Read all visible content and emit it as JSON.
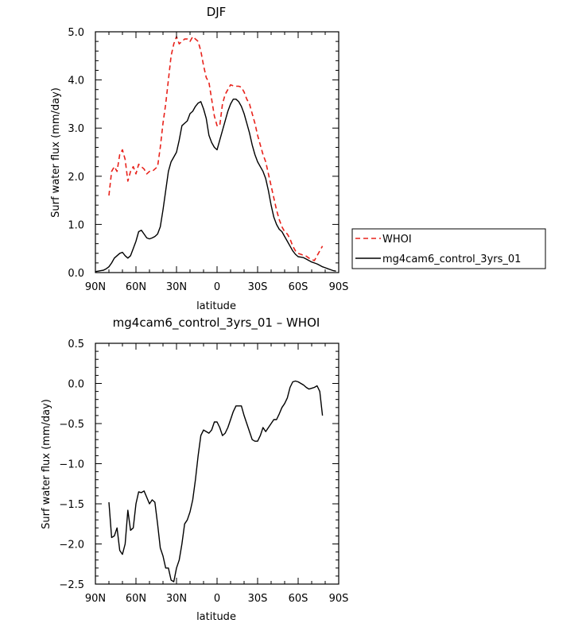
{
  "chart_data": [
    {
      "type": "line",
      "title": "DJF",
      "xlabel": "latitude",
      "ylabel": "Surf water flux (mm/day)",
      "xlim": [
        90,
        -90
      ],
      "ylim": [
        0,
        5
      ],
      "xticks": [
        90,
        60,
        30,
        0,
        -30,
        -60,
        -90
      ],
      "xtick_labels": [
        "90N",
        "60N",
        "30N",
        "0",
        "30S",
        "60S",
        "90S"
      ],
      "yticks": [
        0,
        1,
        2,
        3,
        4,
        5
      ],
      "ytick_labels": [
        "0.0",
        "1.0",
        "2.0",
        "3.0",
        "4.0",
        "5.0"
      ],
      "legend_position": "right",
      "series": [
        {
          "name": "WHOI",
          "color": "#e8221b",
          "dash": "dashed",
          "x": [
            80,
            78,
            76,
            74,
            72,
            70,
            68,
            66,
            64,
            62,
            60,
            58,
            56,
            54,
            52,
            50,
            48,
            46,
            44,
            42,
            40,
            38,
            36,
            34,
            32,
            30,
            28,
            26,
            24,
            22,
            20,
            18,
            16,
            14,
            12,
            10,
            8,
            6,
            4,
            2,
            0,
            -2,
            -4,
            -6,
            -8,
            -10,
            -12,
            -14,
            -16,
            -18,
            -20,
            -22,
            -24,
            -26,
            -28,
            -30,
            -32,
            -34,
            -36,
            -38,
            -40,
            -42,
            -44,
            -46,
            -48,
            -50,
            -52,
            -54,
            -56,
            -58,
            -60,
            -62,
            -64,
            -66,
            -68,
            -70,
            -72,
            -74,
            -76,
            -78
          ],
          "y": [
            1.6,
            2.1,
            2.2,
            2.1,
            2.45,
            2.55,
            2.35,
            1.9,
            2.1,
            2.2,
            2.05,
            2.25,
            2.2,
            2.15,
            2.05,
            2.1,
            2.1,
            2.15,
            2.2,
            2.6,
            3.1,
            3.5,
            4.0,
            4.5,
            4.75,
            4.9,
            4.75,
            4.8,
            4.85,
            4.85,
            4.8,
            4.9,
            4.85,
            4.8,
            4.6,
            4.3,
            4.05,
            3.95,
            3.6,
            3.25,
            3.05,
            3.05,
            3.5,
            3.7,
            3.8,
            3.9,
            3.88,
            3.87,
            3.87,
            3.85,
            3.75,
            3.6,
            3.5,
            3.3,
            3.1,
            2.85,
            2.65,
            2.45,
            2.3,
            2.05,
            1.8,
            1.55,
            1.3,
            1.1,
            0.95,
            0.85,
            0.8,
            0.7,
            0.55,
            0.45,
            0.4,
            0.38,
            0.36,
            0.34,
            0.3,
            0.27,
            0.25,
            0.35,
            0.45,
            0.55
          ]
        },
        {
          "name": "mg4cam6_control_3yrs_01",
          "color": "#000000",
          "dash": "solid",
          "x": [
            90,
            88,
            86,
            84,
            82,
            80,
            78,
            76,
            74,
            72,
            70,
            68,
            66,
            64,
            62,
            60,
            58,
            56,
            54,
            52,
            50,
            48,
            46,
            44,
            42,
            40,
            38,
            36,
            34,
            32,
            30,
            28,
            26,
            24,
            22,
            20,
            18,
            16,
            14,
            12,
            10,
            8,
            6,
            4,
            2,
            0,
            -2,
            -4,
            -6,
            -8,
            -10,
            -12,
            -14,
            -16,
            -18,
            -20,
            -22,
            -24,
            -26,
            -28,
            -30,
            -32,
            -34,
            -36,
            -38,
            -40,
            -42,
            -44,
            -46,
            -48,
            -50,
            -52,
            -54,
            -56,
            -58,
            -60,
            -62,
            -64,
            -66,
            -68,
            -70,
            -72,
            -74,
            -76,
            -78,
            -80,
            -82,
            -84,
            -86,
            -88
          ],
          "y": [
            0.02,
            0.03,
            0.04,
            0.05,
            0.08,
            0.12,
            0.2,
            0.3,
            0.35,
            0.4,
            0.42,
            0.35,
            0.3,
            0.35,
            0.5,
            0.65,
            0.85,
            0.88,
            0.8,
            0.72,
            0.7,
            0.72,
            0.75,
            0.8,
            0.95,
            1.3,
            1.7,
            2.1,
            2.3,
            2.4,
            2.5,
            2.75,
            3.05,
            3.1,
            3.15,
            3.3,
            3.35,
            3.45,
            3.52,
            3.55,
            3.4,
            3.2,
            2.85,
            2.7,
            2.6,
            2.55,
            2.75,
            2.95,
            3.15,
            3.35,
            3.5,
            3.6,
            3.6,
            3.55,
            3.45,
            3.3,
            3.1,
            2.9,
            2.65,
            2.45,
            2.3,
            2.2,
            2.1,
            1.95,
            1.7,
            1.4,
            1.15,
            1.0,
            0.9,
            0.85,
            0.75,
            0.65,
            0.55,
            0.45,
            0.38,
            0.33,
            0.32,
            0.31,
            0.28,
            0.25,
            0.22,
            0.2,
            0.18,
            0.15,
            0.12,
            0.1,
            0.08,
            0.06,
            0.04,
            0.03
          ]
        }
      ]
    },
    {
      "type": "line",
      "title": "mg4cam6_control_3yrs_01 – WHOI",
      "xlabel": "latitude",
      "ylabel": "Surf water flux (mm/day)",
      "xlim": [
        90,
        -90
      ],
      "ylim": [
        -2.5,
        0.5
      ],
      "xticks": [
        90,
        60,
        30,
        0,
        -30,
        -60,
        -90
      ],
      "xtick_labels": [
        "90N",
        "60N",
        "30N",
        "0",
        "30S",
        "60S",
        "90S"
      ],
      "yticks": [
        -2.5,
        -2.0,
        -1.5,
        -1.0,
        -0.5,
        0.0,
        0.5
      ],
      "ytick_labels": [
        "−2.5",
        "−2.0",
        "−1.5",
        "−1.0",
        "−0.5",
        "0.0",
        "0.5"
      ],
      "series": [
        {
          "color": "#000000",
          "dash": "solid",
          "x": [
            80,
            78,
            76,
            74,
            72,
            70,
            68,
            66,
            64,
            62,
            60,
            58,
            56,
            54,
            52,
            50,
            48,
            46,
            44,
            42,
            40,
            38,
            36,
            34,
            32,
            30,
            28,
            26,
            24,
            22,
            20,
            18,
            16,
            14,
            12,
            10,
            8,
            6,
            4,
            2,
            0,
            -2,
            -4,
            -6,
            -8,
            -10,
            -12,
            -14,
            -16,
            -18,
            -20,
            -22,
            -24,
            -26,
            -28,
            -30,
            -32,
            -34,
            -36,
            -38,
            -40,
            -42,
            -44,
            -46,
            -48,
            -50,
            -52,
            -54,
            -56,
            -58,
            -60,
            -62,
            -64,
            -66,
            -68,
            -70,
            -72,
            -74,
            -76,
            -78
          ],
          "y": [
            -1.48,
            -1.92,
            -1.9,
            -1.8,
            -2.08,
            -2.13,
            -2.0,
            -1.58,
            -1.83,
            -1.8,
            -1.5,
            -1.35,
            -1.36,
            -1.34,
            -1.42,
            -1.5,
            -1.45,
            -1.48,
            -1.75,
            -2.05,
            -2.15,
            -2.3,
            -2.3,
            -2.45,
            -2.47,
            -2.3,
            -2.2,
            -2.0,
            -1.75,
            -1.7,
            -1.6,
            -1.45,
            -1.2,
            -0.9,
            -0.65,
            -0.58,
            -0.6,
            -0.62,
            -0.58,
            -0.48,
            -0.48,
            -0.55,
            -0.65,
            -0.62,
            -0.55,
            -0.45,
            -0.35,
            -0.28,
            -0.28,
            -0.28,
            -0.4,
            -0.5,
            -0.6,
            -0.7,
            -0.72,
            -0.72,
            -0.65,
            -0.55,
            -0.6,
            -0.55,
            -0.5,
            -0.45,
            -0.45,
            -0.38,
            -0.3,
            -0.25,
            -0.18,
            -0.05,
            0.02,
            0.03,
            0.02,
            0.0,
            -0.02,
            -0.05,
            -0.07,
            -0.06,
            -0.05,
            -0.03,
            -0.1,
            -0.4
          ]
        }
      ]
    }
  ]
}
